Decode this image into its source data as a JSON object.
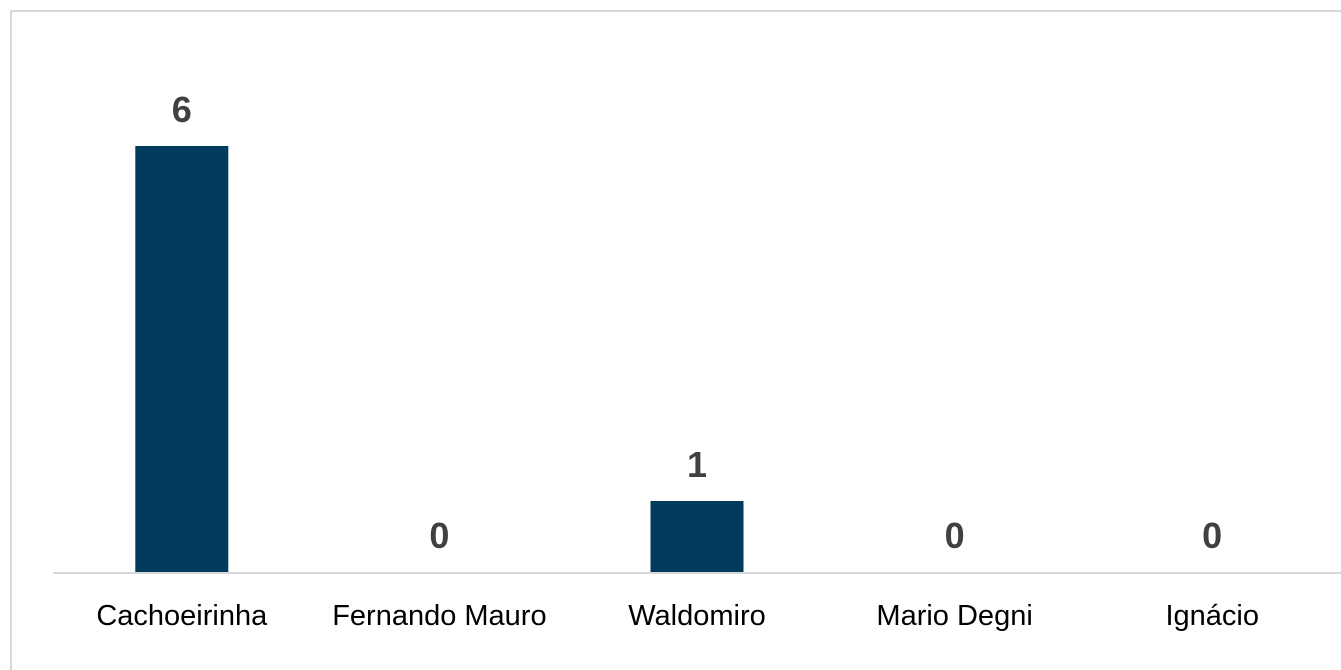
{
  "chart_data": {
    "type": "bar",
    "categories": [
      "Cachoeirinha",
      "Fernando Mauro",
      "Waldomiro",
      "Mario Degni",
      "Ignácio"
    ],
    "values": [
      6,
      0,
      1,
      0,
      0
    ],
    "title": "",
    "xlabel": "",
    "ylabel": "",
    "ylim": [
      0,
      6
    ],
    "grid": false,
    "legend": "none",
    "data_labels": [
      "6",
      "0",
      "1",
      "0",
      "0"
    ],
    "colors": {
      "bar": "#003b5c",
      "label_text": "#404040",
      "axis_line": "#d9d9d9",
      "frame": "#d9d9d9"
    }
  }
}
